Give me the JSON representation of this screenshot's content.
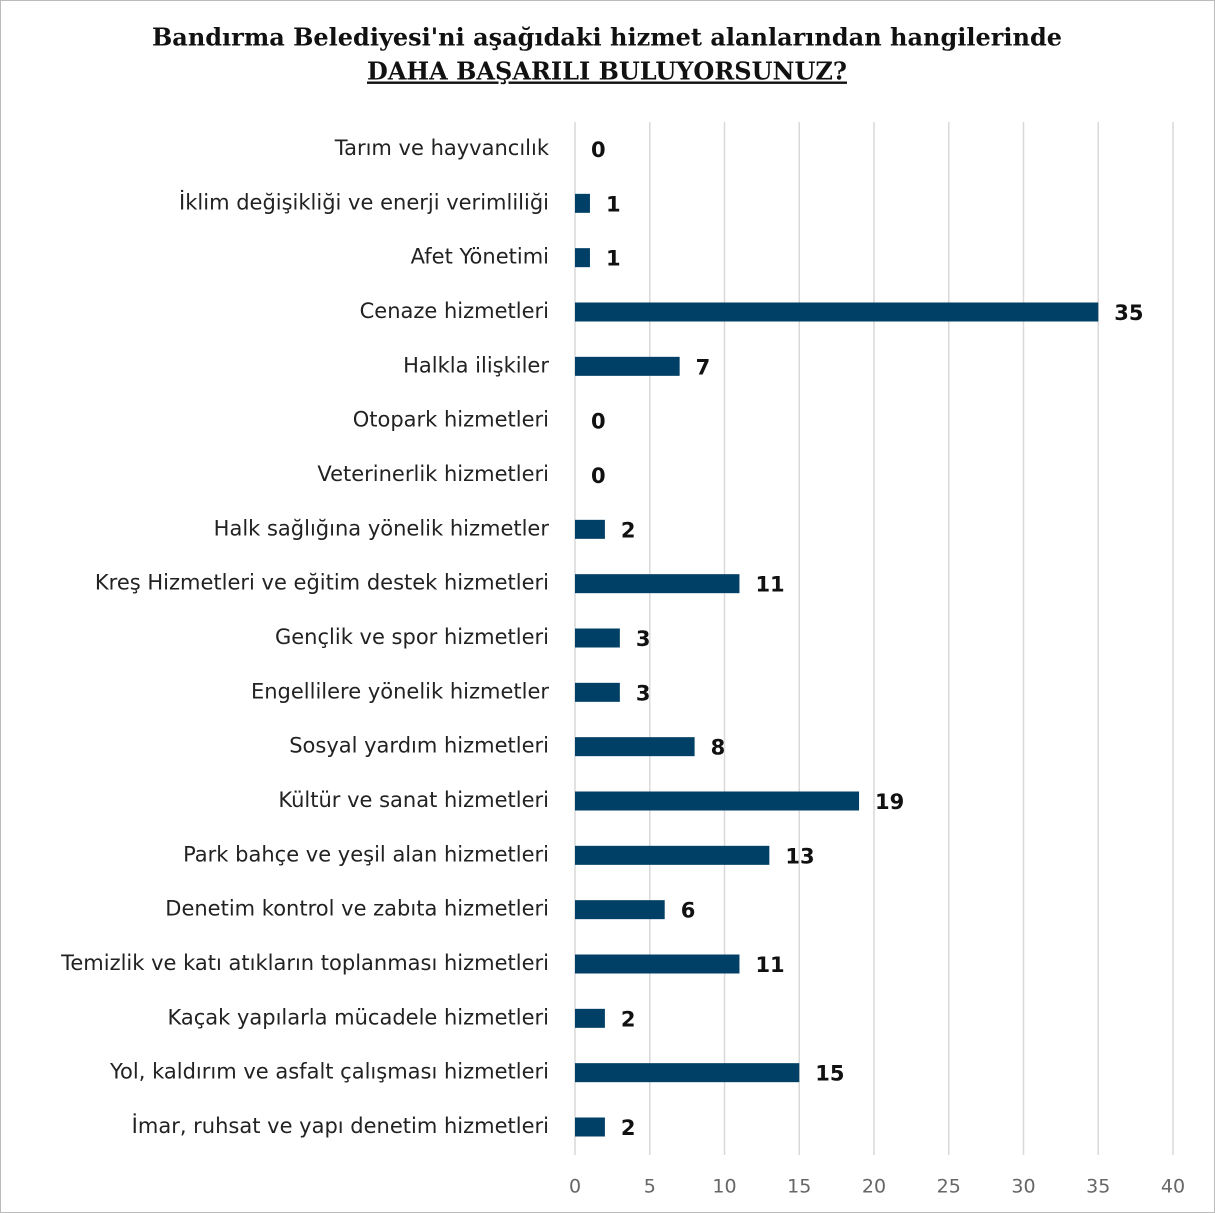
{
  "chart_data": {
    "type": "barh",
    "title": "Bandırma Belediyesi'ni aşağıdaki hizmet alanlarından hangilerinde",
    "subtitle": "DAHA BAŞARILI BULUYORSUNUZ?",
    "categories": [
      "Tarım ve hayvancılık",
      "İklim değişikliği ve enerji verimliliği",
      "Afet Yönetimi",
      "Cenaze hizmetleri",
      "Halkla ilişkiler",
      "Otopark hizmetleri",
      "Veterinerlik hizmetleri",
      "Halk sağlığına yönelik hizmetler",
      "Kreş Hizmetleri ve eğitim destek hizmetleri",
      "Gençlik ve spor hizmetleri",
      "Engellilere yönelik hizmetler",
      "Sosyal yardım hizmetleri",
      "Kültür ve sanat hizmetleri",
      "Park bahçe ve yeşil alan hizmetleri",
      "Denetim kontrol ve zabıta hizmetleri",
      "Temizlik ve katı atıkların toplanması hizmetleri",
      "Kaçak yapılarla mücadele hizmetleri",
      "Yol, kaldırım ve asfalt çalışması hizmetleri",
      "İmar, ruhsat ve yapı denetim hizmetleri"
    ],
    "values": [
      0,
      1,
      1,
      35,
      7,
      0,
      0,
      2,
      11,
      3,
      3,
      8,
      19,
      13,
      6,
      11,
      2,
      15,
      2
    ],
    "color": "#003f66",
    "xlim": [
      0,
      40
    ],
    "xticks": [
      0,
      5,
      10,
      15,
      20,
      25,
      30,
      35,
      40
    ],
    "grid": true
  }
}
